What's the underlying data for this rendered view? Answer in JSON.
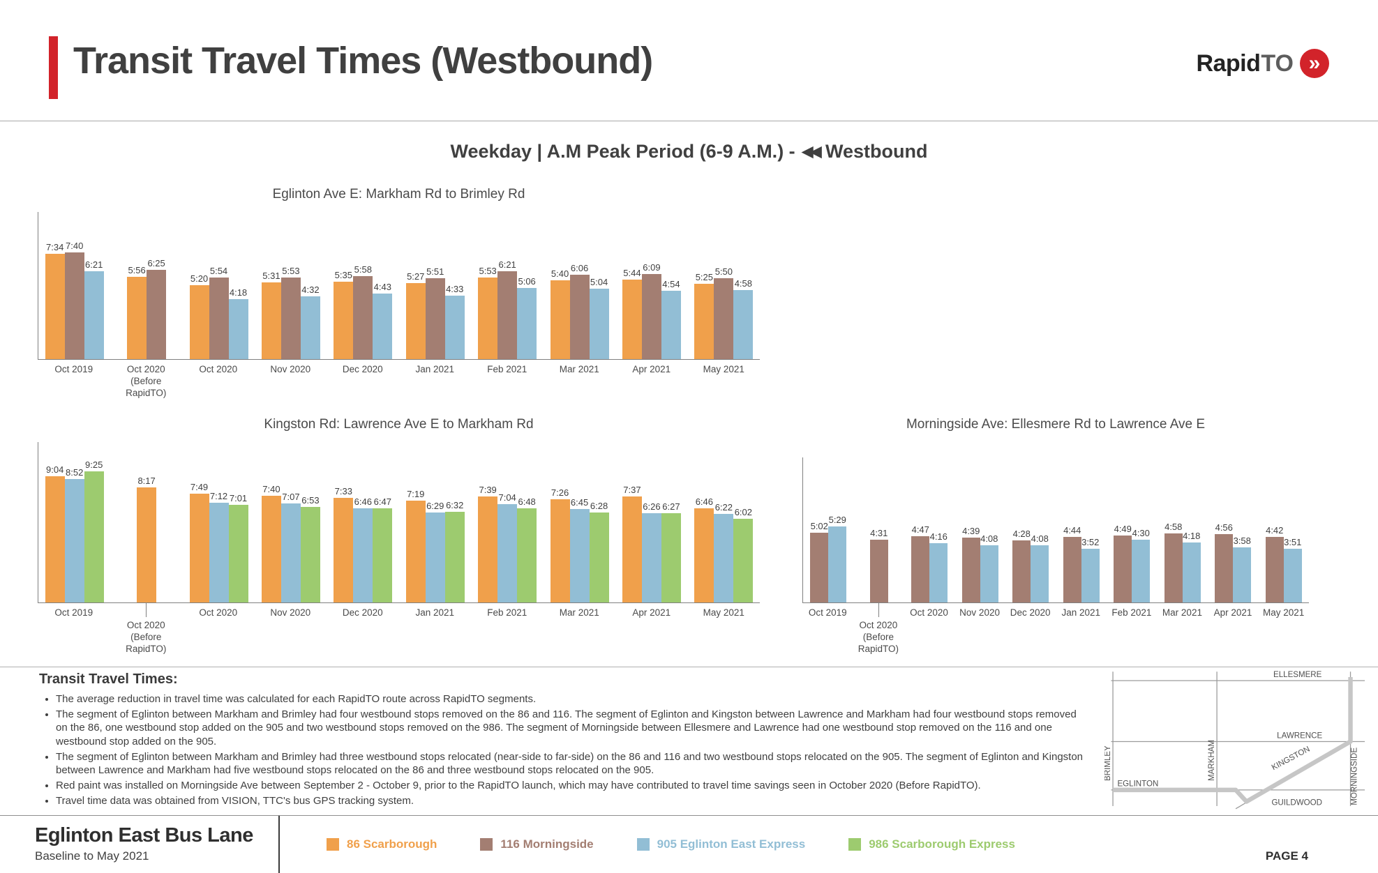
{
  "header": {
    "title": "Transit Travel Times (Westbound)",
    "logo": {
      "rapid": "Rapid",
      "to": "TO"
    }
  },
  "subtitle": {
    "prefix": "Weekday | A.M Peak Period (6-9 A.M.) -",
    "suffix": "Westbound"
  },
  "icons": {
    "westbound_arrows": "◀◀",
    "logo_chevrons": "»"
  },
  "colors": {
    "accent_red": "#D2232A",
    "axis": "#808080",
    "series": {
      "86": "#F0A04B",
      "116": "#A37E72",
      "905": "#92BED5",
      "986": "#9DCB6F"
    }
  },
  "chart_data": [
    {
      "type": "bar",
      "title": "Eglinton Ave E: Markham Rd to Brimley Rd",
      "value_format": "m:ss travel time",
      "ylabel": "",
      "categories": [
        {
          "label": "Oct 2019"
        },
        {
          "label": "Oct 2020",
          "sub": "(Before RapidTO)"
        },
        {
          "label": "Oct 2020"
        },
        {
          "label": "Nov 2020"
        },
        {
          "label": "Dec 2020"
        },
        {
          "label": "Jan 2021"
        },
        {
          "label": "Feb 2021"
        },
        {
          "label": "Mar 2021"
        },
        {
          "label": "Apr 2021"
        },
        {
          "label": "May 2021"
        }
      ],
      "series": [
        {
          "name": "86 Scarborough",
          "route": "86",
          "values": [
            "7:34",
            "5:56",
            "5:20",
            "5:31",
            "5:35",
            "5:27",
            "5:53",
            "5:40",
            "5:44",
            "5:25"
          ]
        },
        {
          "name": "116 Morningside",
          "route": "116",
          "values": [
            "7:40",
            "6:25",
            "5:54",
            "5:53",
            "5:58",
            "5:51",
            "6:21",
            "6:06",
            "6:09",
            "5:50"
          ]
        },
        {
          "name": "905 Eglinton East Express",
          "route": "905",
          "values": [
            "6:21",
            null,
            "4:18",
            "4:32",
            "4:43",
            "4:33",
            "5:06",
            "5:04",
            "4:54",
            "4:58"
          ]
        }
      ]
    },
    {
      "type": "bar",
      "title": "Kingston Rd: Lawrence Ave E to Markham Rd",
      "value_format": "m:ss travel time",
      "ylabel": "",
      "categories": [
        {
          "label": "Oct 2019"
        },
        {
          "label": "Oct 2020",
          "sub": "(Before RapidTO)",
          "offset": true
        },
        {
          "label": "Oct 2020"
        },
        {
          "label": "Nov 2020"
        },
        {
          "label": "Dec 2020"
        },
        {
          "label": "Jan 2021"
        },
        {
          "label": "Feb 2021"
        },
        {
          "label": "Mar 2021"
        },
        {
          "label": "Apr 2021"
        },
        {
          "label": "May 2021"
        }
      ],
      "series": [
        {
          "name": "86 Scarborough",
          "route": "86",
          "values": [
            "9:04",
            "8:17",
            "7:49",
            "7:40",
            "7:33",
            "7:19",
            "7:39",
            "7:26",
            "7:37",
            "6:46"
          ]
        },
        {
          "name": "905 Eglinton East Express",
          "route": "905",
          "values": [
            "8:52",
            null,
            "7:12",
            "7:07",
            "6:46",
            "6:29",
            "7:04",
            "6:45",
            "6:26",
            "6:22"
          ]
        },
        {
          "name": "986 Scarborough Express",
          "route": "986",
          "values": [
            "9:25",
            null,
            "7:01",
            "6:53",
            "6:47",
            "6:32",
            "6:48",
            "6:28",
            "6:27",
            "6:02"
          ]
        }
      ]
    },
    {
      "type": "bar",
      "title": "Morningside Ave: Ellesmere Rd to Lawrence Ave E",
      "value_format": "m:ss travel time",
      "ylabel": "",
      "categories": [
        {
          "label": "Oct 2019"
        },
        {
          "label": "Oct 2020",
          "sub": "(Before RapidTO)",
          "offset": true
        },
        {
          "label": "Oct 2020"
        },
        {
          "label": "Nov 2020"
        },
        {
          "label": "Dec 2020"
        },
        {
          "label": "Jan 2021"
        },
        {
          "label": "Feb 2021"
        },
        {
          "label": "Mar 2021"
        },
        {
          "label": "Apr 2021"
        },
        {
          "label": "May 2021"
        }
      ],
      "series": [
        {
          "name": "116 Morningside",
          "route": "116",
          "values": [
            "5:02",
            "4:31",
            "4:47",
            "4:39",
            "4:28",
            "4:44",
            "4:49",
            "4:58",
            "4:56",
            "4:42"
          ]
        },
        {
          "name": "905 Eglinton East Express",
          "route": "905",
          "values": [
            "5:29",
            null,
            "4:16",
            "4:08",
            "4:08",
            "3:52",
            "4:30",
            "4:18",
            "3:58",
            "3:51"
          ]
        }
      ]
    }
  ],
  "notes": {
    "heading": "Transit Travel Times:",
    "bullets": [
      "The average reduction in travel time was calculated for each RapidTO route across RapidTO segments.",
      "The segment of Eglinton between Markham and Brimley had four westbound stops removed on the 86 and 116. The segment of Eglinton and Kingston between Lawrence and Markham had four westbound stops removed on the 86, one westbound stop added on the 905 and two westbound stops removed on the 986. The segment of Morningside between Ellesmere and Lawrence had one westbound stop removed on the 116 and one westbound stop added on the 905.",
      "The segment of Eglinton between Markham and Brimley had three westbound stops relocated (near-side to far-side) on the 86 and 116 and two westbound stops relocated on the 905. The segment of Eglinton and Kingston between Lawrence and Markham had five westbound stops relocated on the 86 and three westbound stops relocated on the 905.",
      "Red paint was installed on Morningside Ave between September 2 - October 9, prior to the RapidTO launch, which may have contributed to travel time savings seen in October 2020 (Before RapidTO).",
      "Travel time data was obtained from VISION, TTC's bus GPS tracking system."
    ]
  },
  "map": {
    "streets": {
      "ellesmere": "ELLESMERE",
      "lawrence": "LAWRENCE",
      "eglinton": "EGLINTON",
      "brimley": "BRIMLEY",
      "markham": "MARKHAM",
      "kingston": "KINGSTON",
      "morningside": "MORNINGSIDE",
      "guildwood": "GUILDWOOD"
    }
  },
  "legend": [
    {
      "route": "86",
      "label": "86 Scarborough"
    },
    {
      "route": "116",
      "label": "116 Morningside"
    },
    {
      "route": "905",
      "label": "905 Eglinton East Express"
    },
    {
      "route": "986",
      "label": "986 Scarborough Express"
    }
  ],
  "footer": {
    "title": "Eglinton East Bus Lane",
    "subtitle": "Baseline to May 2021",
    "page_label": "PAGE 4"
  }
}
